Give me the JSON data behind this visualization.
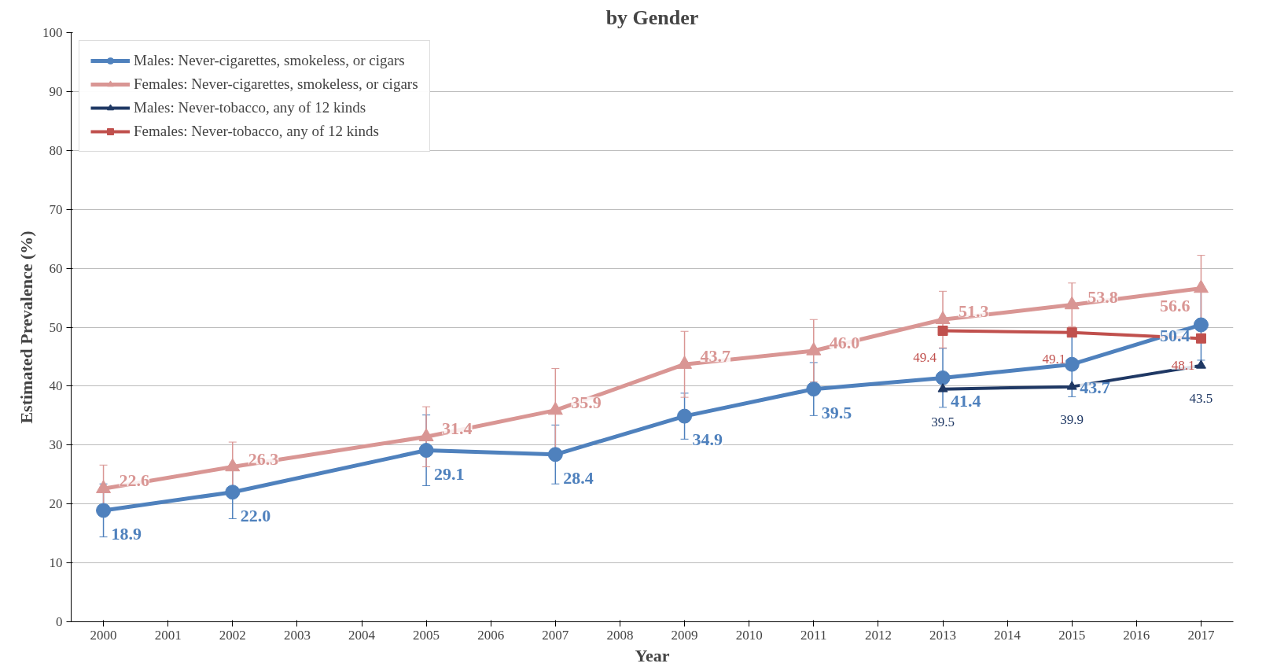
{
  "chart_data": {
    "type": "line",
    "title": "by Gender",
    "xlabel": "Year",
    "ylabel": "Estimated Prevalence (%)",
    "xlim": [
      1999.5,
      2017.5
    ],
    "xticks": [
      2000,
      2001,
      2002,
      2003,
      2004,
      2005,
      2006,
      2007,
      2008,
      2009,
      2010,
      2011,
      2012,
      2013,
      2014,
      2015,
      2016,
      2017
    ],
    "ylim": [
      0,
      100
    ],
    "yticks": [
      0,
      10,
      20,
      30,
      40,
      50,
      60,
      70,
      80,
      90,
      100
    ],
    "grid": "y",
    "legend": "top left",
    "line_style": "solid",
    "data_labels": true,
    "series": [
      {
        "name": "Males: Never-cigarettes, smokeless, or cigars",
        "color": "#4f81bd",
        "marker": "circle",
        "x": [
          2000,
          2002,
          2005,
          2007,
          2009,
          2011,
          2013,
          2015,
          2017
        ],
        "values": [
          18.9,
          22.0,
          29.1,
          28.4,
          34.9,
          39.5,
          41.4,
          43.7,
          50.4
        ],
        "value_labels": [
          "18.9",
          "22.0",
          "29.1",
          "28.4",
          "34.9",
          "39.5",
          "41.4",
          "43.7",
          "50.4"
        ],
        "errors": [
          4.5,
          4.5,
          6,
          5,
          3.9,
          4.5,
          5,
          5.5,
          6
        ]
      },
      {
        "name": "Females: Never-cigarettes, smokeless, or cigars",
        "color": "#d99694",
        "marker": "triangle",
        "x": [
          2000,
          2002,
          2005,
          2007,
          2009,
          2011,
          2013,
          2015,
          2017
        ],
        "values": [
          22.6,
          26.3,
          31.4,
          35.9,
          43.7,
          46.0,
          51.3,
          53.8,
          56.6
        ],
        "value_labels": [
          "22.6",
          "26.3",
          "31.4",
          "35.9",
          "43.7",
          "46.0",
          "51.3",
          "53.8",
          "56.6"
        ],
        "errors": [
          4,
          4.2,
          5.1,
          7.1,
          5.6,
          5.3,
          4.8,
          3.7,
          5.6
        ]
      },
      {
        "name": "Males: Never-tobacco, any of 12 kinds",
        "color": "#1f3864",
        "marker": "triangle",
        "x": [
          2013,
          2015,
          2017
        ],
        "values": [
          39.5,
          39.9,
          43.5
        ],
        "value_labels": [
          "39.5",
          "39.9",
          "43.5"
        ]
      },
      {
        "name": "Females: Never-tobacco, any of 12 kinds",
        "color": "#c0504d",
        "marker": "square",
        "x": [
          2013,
          2015,
          2017
        ],
        "values": [
          49.4,
          49.1,
          48.1
        ],
        "value_labels": [
          "49.4",
          "49.1",
          "48.1"
        ]
      }
    ]
  }
}
